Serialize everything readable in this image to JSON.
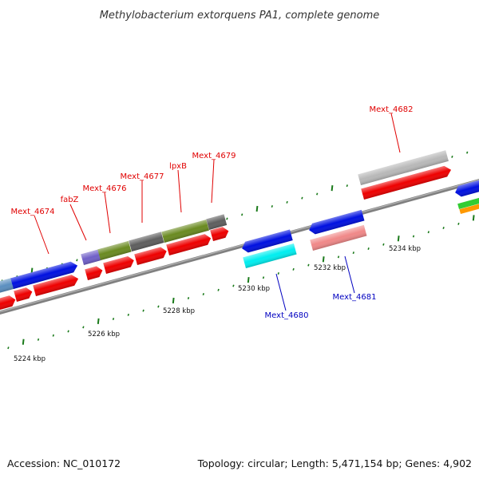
{
  "title": "Methylobacterium extorquens PA1, complete genome",
  "footer": {
    "accession": "Accession: NC_010172",
    "summary": "Topology: circular; Length: 5,471,154 bp; Genes: 4,902"
  },
  "colors": {
    "forward_label": "#e00000",
    "reverse_label": "#0000c0",
    "backbone": "#777777",
    "tick": "#1a7a1a"
  },
  "scale_ticks": [
    {
      "label": "5224 kbp"
    },
    {
      "label": "5226 kbp"
    },
    {
      "label": "5228 kbp"
    },
    {
      "label": "5230 kbp"
    },
    {
      "label": "5232 kbp"
    },
    {
      "label": "5234 kbp"
    }
  ],
  "gene_labels": [
    {
      "id": "mext-4674",
      "text": "Mext_4674",
      "strand": "forward"
    },
    {
      "id": "fabz",
      "text": "fabZ",
      "strand": "forward"
    },
    {
      "id": "mext-4676",
      "text": "Mext_4676",
      "strand": "forward"
    },
    {
      "id": "mext-4677",
      "text": "Mext_4677",
      "strand": "forward"
    },
    {
      "id": "lpxb",
      "text": "lpxB",
      "strand": "forward"
    },
    {
      "id": "mext-4679",
      "text": "Mext_4679",
      "strand": "forward"
    },
    {
      "id": "mext-4682",
      "text": "Mext_4682",
      "strand": "forward"
    },
    {
      "id": "mext-4680",
      "text": "Mext_4680",
      "strand": "reverse"
    },
    {
      "id": "mext-4681",
      "text": "Mext_4681",
      "strand": "reverse"
    }
  ]
}
